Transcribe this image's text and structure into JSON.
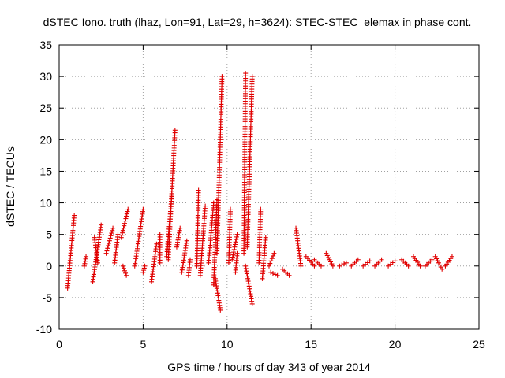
{
  "chart_data": {
    "type": "scatter",
    "title": "dSTEC Iono. truth (lhaz, Lon=91, Lat=29, h=3624): STEC-STEC_elemax in phase cont.",
    "xlabel": "GPS time / hours of day 343 of year 2014",
    "ylabel": "dSTEC  / TECUs",
    "xlim": [
      0,
      25
    ],
    "ylim": [
      -10,
      35
    ],
    "xticks": [
      0,
      5,
      10,
      15,
      20,
      25
    ],
    "yticks": [
      -10,
      -5,
      0,
      5,
      10,
      15,
      20,
      25,
      30,
      35
    ],
    "grid": true,
    "marker": "plus",
    "color": "#e00000",
    "segments": [
      {
        "start": [
          0.5,
          -3.5
        ],
        "end": [
          0.9,
          8.0
        ]
      },
      {
        "start": [
          1.5,
          0.0
        ],
        "end": [
          1.6,
          1.5
        ]
      },
      {
        "start": [
          2.0,
          -2.5
        ],
        "end": [
          2.5,
          6.5
        ]
      },
      {
        "start": [
          2.1,
          4.5
        ],
        "end": [
          2.3,
          0.5
        ]
      },
      {
        "start": [
          2.8,
          2.0
        ],
        "end": [
          3.2,
          6.0
        ]
      },
      {
        "start": [
          3.3,
          0.5
        ],
        "end": [
          3.5,
          5.0
        ]
      },
      {
        "start": [
          3.7,
          4.5
        ],
        "end": [
          4.1,
          9.0
        ]
      },
      {
        "start": [
          3.8,
          0.0
        ],
        "end": [
          4.0,
          -1.5
        ]
      },
      {
        "start": [
          4.5,
          0.0
        ],
        "end": [
          5.0,
          9.0
        ]
      },
      {
        "start": [
          5.0,
          -1.0
        ],
        "end": [
          5.1,
          0.0
        ]
      },
      {
        "start": [
          5.5,
          -2.5
        ],
        "end": [
          5.8,
          3.5
        ]
      },
      {
        "start": [
          6.0,
          5.0
        ],
        "end": [
          6.0,
          0.5
        ]
      },
      {
        "start": [
          6.4,
          1.5
        ],
        "end": [
          6.7,
          11.0
        ]
      },
      {
        "start": [
          6.5,
          1.0
        ],
        "end": [
          6.9,
          21.5
        ]
      },
      {
        "start": [
          7.0,
          3.0
        ],
        "end": [
          7.2,
          6.0
        ]
      },
      {
        "start": [
          7.3,
          -1.0
        ],
        "end": [
          7.6,
          4.0
        ]
      },
      {
        "start": [
          7.7,
          -1.5
        ],
        "end": [
          7.8,
          1.0
        ]
      },
      {
        "start": [
          8.2,
          0.0
        ],
        "end": [
          8.3,
          12.0
        ]
      },
      {
        "start": [
          8.4,
          -1.5
        ],
        "end": [
          8.7,
          9.5
        ]
      },
      {
        "start": [
          8.9,
          0.5
        ],
        "end": [
          9.2,
          10.0
        ]
      },
      {
        "start": [
          9.2,
          -3.0
        ],
        "end": [
          9.4,
          10.5
        ]
      },
      {
        "start": [
          9.3,
          -2.0
        ],
        "end": [
          9.6,
          -7.0
        ]
      },
      {
        "start": [
          9.4,
          2.0
        ],
        "end": [
          9.7,
          30.0
        ]
      },
      {
        "start": [
          10.1,
          0.5
        ],
        "end": [
          10.2,
          9.0
        ]
      },
      {
        "start": [
          10.3,
          1.0
        ],
        "end": [
          10.6,
          5.0
        ]
      },
      {
        "start": [
          10.5,
          -1.0
        ],
        "end": [
          10.6,
          2.0
        ]
      },
      {
        "start": [
          11.0,
          2.0
        ],
        "end": [
          11.1,
          30.5
        ]
      },
      {
        "start": [
          11.1,
          0.0
        ],
        "end": [
          11.5,
          -6.0
        ]
      },
      {
        "start": [
          11.2,
          3.0
        ],
        "end": [
          11.5,
          30.0
        ]
      },
      {
        "start": [
          11.9,
          0.5
        ],
        "end": [
          12.0,
          9.0
        ]
      },
      {
        "start": [
          12.1,
          -2.0
        ],
        "end": [
          12.3,
          4.5
        ]
      },
      {
        "start": [
          12.5,
          0.0
        ],
        "end": [
          12.8,
          2.0
        ]
      },
      {
        "start": [
          12.6,
          -1.0
        ],
        "end": [
          13.0,
          -1.5
        ]
      },
      {
        "start": [
          13.3,
          -0.5
        ],
        "end": [
          13.7,
          -1.5
        ]
      },
      {
        "start": [
          14.1,
          6.0
        ],
        "end": [
          14.4,
          0.0
        ]
      },
      {
        "start": [
          14.7,
          1.5
        ],
        "end": [
          15.2,
          0.0
        ]
      },
      {
        "start": [
          15.2,
          1.0
        ],
        "end": [
          15.6,
          0.0
        ]
      },
      {
        "start": [
          15.9,
          2.0
        ],
        "end": [
          16.3,
          0.0
        ]
      },
      {
        "start": [
          16.7,
          0.0
        ],
        "end": [
          17.1,
          0.5
        ]
      },
      {
        "start": [
          17.4,
          0.0
        ],
        "end": [
          17.8,
          1.0
        ]
      },
      {
        "start": [
          18.1,
          0.0
        ],
        "end": [
          18.5,
          0.8
        ]
      },
      {
        "start": [
          18.8,
          0.0
        ],
        "end": [
          19.2,
          1.0
        ]
      },
      {
        "start": [
          19.6,
          0.0
        ],
        "end": [
          20.0,
          0.8
        ]
      },
      {
        "start": [
          20.4,
          1.0
        ],
        "end": [
          20.8,
          0.0
        ]
      },
      {
        "start": [
          21.1,
          1.5
        ],
        "end": [
          21.5,
          0.0
        ]
      },
      {
        "start": [
          21.8,
          0.0
        ],
        "end": [
          22.2,
          1.0
        ]
      },
      {
        "start": [
          22.4,
          1.5
        ],
        "end": [
          22.8,
          -0.5
        ]
      },
      {
        "start": [
          23.0,
          0.0
        ],
        "end": [
          23.4,
          1.5
        ]
      }
    ]
  }
}
